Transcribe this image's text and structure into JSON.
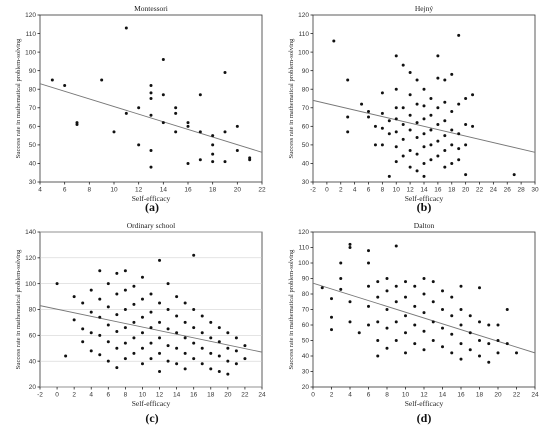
{
  "chart_data": [
    {
      "type": "scatter",
      "panel": "(a)",
      "title": "Montessori",
      "xlabel": "Self-efficacy",
      "ylabel": "Success rate in mathematical problem-solving",
      "xlim": [
        4,
        22
      ],
      "ylim": [
        30,
        120
      ],
      "xticks": [
        4,
        6,
        8,
        10,
        12,
        14,
        16,
        18,
        20,
        22
      ],
      "yticks": [
        30,
        40,
        50,
        60,
        70,
        80,
        90,
        100,
        110,
        120
      ],
      "grid": false,
      "trendline": {
        "x": [
          4,
          22
        ],
        "y": [
          83,
          46
        ]
      },
      "points": [
        [
          5,
          85
        ],
        [
          6,
          82
        ],
        [
          7,
          62
        ],
        [
          7,
          61
        ],
        [
          9,
          85
        ],
        [
          10,
          57
        ],
        [
          11,
          113
        ],
        [
          11,
          67
        ],
        [
          12,
          70
        ],
        [
          12,
          50
        ],
        [
          13,
          82
        ],
        [
          13,
          78
        ],
        [
          13,
          75
        ],
        [
          13,
          66
        ],
        [
          13,
          47
        ],
        [
          13,
          38
        ],
        [
          14,
          96
        ],
        [
          14,
          77
        ],
        [
          14,
          62
        ],
        [
          15,
          70
        ],
        [
          15,
          67
        ],
        [
          15,
          57
        ],
        [
          16,
          62
        ],
        [
          16,
          60
        ],
        [
          16,
          40
        ],
        [
          17,
          57
        ],
        [
          17,
          77
        ],
        [
          17,
          42
        ],
        [
          18,
          55
        ],
        [
          18,
          50
        ],
        [
          18,
          45
        ],
        [
          18,
          41
        ],
        [
          19,
          89
        ],
        [
          19,
          57
        ],
        [
          19,
          41
        ],
        [
          20,
          60
        ],
        [
          20,
          47
        ],
        [
          21,
          43
        ],
        [
          21,
          42
        ]
      ]
    },
    {
      "type": "scatter",
      "panel": "(b)",
      "title": "Hejný",
      "xlabel": "Self-efficacy",
      "ylabel": "Success rate in mathematical problem-solving",
      "xlim": [
        -2,
        30
      ],
      "ylim": [
        30,
        120
      ],
      "xticks": [
        -2,
        0,
        2,
        4,
        6,
        8,
        10,
        12,
        14,
        16,
        18,
        20,
        22,
        24,
        26,
        28,
        30
      ],
      "yticks": [
        30,
        40,
        50,
        60,
        70,
        80,
        90,
        100,
        110,
        120
      ],
      "grid": false,
      "trendline": {
        "x": [
          -2,
          30
        ],
        "y": [
          74,
          46
        ]
      },
      "points": [
        [
          1,
          106
        ],
        [
          3,
          85
        ],
        [
          3,
          65
        ],
        [
          3,
          57
        ],
        [
          5,
          72
        ],
        [
          6,
          68
        ],
        [
          6,
          65
        ],
        [
          7,
          60
        ],
        [
          7,
          50
        ],
        [
          8,
          78
        ],
        [
          8,
          67
        ],
        [
          8,
          59
        ],
        [
          8,
          50
        ],
        [
          9,
          63
        ],
        [
          9,
          56
        ],
        [
          9,
          33
        ],
        [
          10,
          98
        ],
        [
          10,
          80
        ],
        [
          10,
          70
        ],
        [
          10,
          64
        ],
        [
          10,
          57
        ],
        [
          10,
          49
        ],
        [
          10,
          41
        ],
        [
          11,
          93
        ],
        [
          11,
          70
        ],
        [
          11,
          61
        ],
        [
          11,
          53
        ],
        [
          11,
          44
        ],
        [
          12,
          89
        ],
        [
          12,
          77
        ],
        [
          12,
          66
        ],
        [
          12,
          58
        ],
        [
          12,
          47
        ],
        [
          12,
          38
        ],
        [
          13,
          85
        ],
        [
          13,
          72
        ],
        [
          13,
          62
        ],
        [
          13,
          54
        ],
        [
          13,
          45
        ],
        [
          13,
          36
        ],
        [
          14,
          80
        ],
        [
          14,
          71
        ],
        [
          14,
          64
        ],
        [
          14,
          56
        ],
        [
          14,
          49
        ],
        [
          14,
          40
        ],
        [
          14,
          33
        ],
        [
          15,
          75
        ],
        [
          15,
          66
        ],
        [
          15,
          58
        ],
        [
          15,
          50
        ],
        [
          15,
          42
        ],
        [
          16,
          98
        ],
        [
          16,
          86
        ],
        [
          16,
          70
        ],
        [
          16,
          61
        ],
        [
          16,
          52
        ],
        [
          16,
          44
        ],
        [
          17,
          85
        ],
        [
          17,
          73
        ],
        [
          17,
          63
        ],
        [
          17,
          55
        ],
        [
          17,
          47
        ],
        [
          17,
          38
        ],
        [
          18,
          88
        ],
        [
          18,
          68
        ],
        [
          18,
          58
        ],
        [
          18,
          50
        ],
        [
          18,
          40
        ],
        [
          19,
          109
        ],
        [
          19,
          72
        ],
        [
          19,
          56
        ],
        [
          19,
          48
        ],
        [
          19,
          42
        ],
        [
          20,
          75
        ],
        [
          20,
          61
        ],
        [
          20,
          50
        ],
        [
          20,
          34
        ],
        [
          21,
          77
        ],
        [
          21,
          60
        ],
        [
          27,
          34
        ]
      ]
    },
    {
      "type": "scatter",
      "panel": "(c)",
      "title": "Ordinary school",
      "xlabel": "Self-efficacy",
      "ylabel": "Success rate in mathematical problem-solving",
      "xlim": [
        -2,
        24
      ],
      "ylim": [
        20,
        140
      ],
      "xticks": [
        -2,
        0,
        2,
        4,
        6,
        8,
        10,
        12,
        14,
        16,
        18,
        20,
        22,
        24
      ],
      "yticks": [
        20,
        40,
        60,
        80,
        100,
        120,
        140
      ],
      "grid": true,
      "trendline": {
        "x": [
          -2,
          24
        ],
        "y": [
          83,
          47
        ]
      },
      "points": [
        [
          0,
          100
        ],
        [
          1,
          44
        ],
        [
          2,
          90
        ],
        [
          2,
          72
        ],
        [
          3,
          85
        ],
        [
          3,
          65
        ],
        [
          3,
          55
        ],
        [
          4,
          95
        ],
        [
          4,
          78
        ],
        [
          4,
          62
        ],
        [
          4,
          48
        ],
        [
          5,
          110
        ],
        [
          5,
          88
        ],
        [
          5,
          74
        ],
        [
          5,
          60
        ],
        [
          5,
          45
        ],
        [
          6,
          100
        ],
        [
          6,
          82
        ],
        [
          6,
          68
        ],
        [
          6,
          55
        ],
        [
          6,
          40
        ],
        [
          7,
          108
        ],
        [
          7,
          92
        ],
        [
          7,
          76
        ],
        [
          7,
          63
        ],
        [
          7,
          50
        ],
        [
          7,
          35
        ],
        [
          8,
          110
        ],
        [
          8,
          95
        ],
        [
          8,
          80
        ],
        [
          8,
          66
        ],
        [
          8,
          54
        ],
        [
          8,
          42
        ],
        [
          9,
          98
        ],
        [
          9,
          84
        ],
        [
          9,
          70
        ],
        [
          9,
          58
        ],
        [
          9,
          46
        ],
        [
          10,
          105
        ],
        [
          10,
          88
        ],
        [
          10,
          74
        ],
        [
          10,
          62
        ],
        [
          10,
          50
        ],
        [
          10,
          38
        ],
        [
          11,
          92
        ],
        [
          11,
          78
        ],
        [
          11,
          66
        ],
        [
          11,
          54
        ],
        [
          11,
          42
        ],
        [
          12,
          118
        ],
        [
          12,
          85
        ],
        [
          12,
          70
        ],
        [
          12,
          58
        ],
        [
          12,
          46
        ],
        [
          12,
          32
        ],
        [
          13,
          100
        ],
        [
          13,
          80
        ],
        [
          13,
          65
        ],
        [
          13,
          52
        ],
        [
          13,
          40
        ],
        [
          14,
          90
        ],
        [
          14,
          75
        ],
        [
          14,
          62
        ],
        [
          14,
          50
        ],
        [
          14,
          38
        ],
        [
          15,
          85
        ],
        [
          15,
          70
        ],
        [
          15,
          58
        ],
        [
          15,
          46
        ],
        [
          15,
          34
        ],
        [
          16,
          122
        ],
        [
          16,
          80
        ],
        [
          16,
          66
        ],
        [
          16,
          54
        ],
        [
          16,
          42
        ],
        [
          17,
          75
        ],
        [
          17,
          62
        ],
        [
          17,
          50
        ],
        [
          17,
          38
        ],
        [
          18,
          70
        ],
        [
          18,
          58
        ],
        [
          18,
          46
        ],
        [
          18,
          34
        ],
        [
          19,
          66
        ],
        [
          19,
          55
        ],
        [
          19,
          44
        ],
        [
          19,
          32
        ],
        [
          20,
          62
        ],
        [
          20,
          50
        ],
        [
          20,
          40
        ],
        [
          20,
          30
        ],
        [
          21,
          58
        ],
        [
          21,
          48
        ],
        [
          21,
          38
        ],
        [
          22,
          52
        ],
        [
          22,
          42
        ]
      ]
    },
    {
      "type": "scatter",
      "panel": "(d)",
      "title": "Dalton",
      "xlabel": "Self-efficacy",
      "ylabel": "Success rate in mathematical problem-solving",
      "xlim": [
        0,
        24
      ],
      "ylim": [
        20,
        120
      ],
      "xticks": [
        0,
        2,
        4,
        6,
        8,
        10,
        12,
        14,
        16,
        18,
        20,
        22,
        24
      ],
      "yticks": [
        20,
        30,
        40,
        50,
        60,
        70,
        80,
        90,
        100,
        110,
        120
      ],
      "grid": false,
      "trendline": {
        "x": [
          0,
          24
        ],
        "y": [
          87,
          42
        ]
      },
      "points": [
        [
          1,
          84
        ],
        [
          2,
          77
        ],
        [
          2,
          65
        ],
        [
          2,
          57
        ],
        [
          3,
          100
        ],
        [
          3,
          90
        ],
        [
          3,
          83
        ],
        [
          4,
          112
        ],
        [
          4,
          110
        ],
        [
          4,
          75
        ],
        [
          4,
          62
        ],
        [
          5,
          55
        ],
        [
          6,
          108
        ],
        [
          6,
          100
        ],
        [
          6,
          85
        ],
        [
          6,
          72
        ],
        [
          6,
          60
        ],
        [
          7,
          88
        ],
        [
          7,
          78
        ],
        [
          7,
          62
        ],
        [
          7,
          50
        ],
        [
          7,
          40
        ],
        [
          8,
          90
        ],
        [
          8,
          82
        ],
        [
          8,
          70
        ],
        [
          8,
          58
        ],
        [
          8,
          45
        ],
        [
          9,
          111
        ],
        [
          9,
          85
        ],
        [
          9,
          75
        ],
        [
          9,
          62
        ],
        [
          9,
          50
        ],
        [
          10,
          88
        ],
        [
          10,
          78
        ],
        [
          10,
          66
        ],
        [
          10,
          55
        ],
        [
          10,
          42
        ],
        [
          11,
          85
        ],
        [
          11,
          72
        ],
        [
          11,
          60
        ],
        [
          11,
          48
        ],
        [
          12,
          90
        ],
        [
          12,
          80
        ],
        [
          12,
          68
        ],
        [
          12,
          56
        ],
        [
          12,
          44
        ],
        [
          13,
          88
        ],
        [
          13,
          75
        ],
        [
          13,
          62
        ],
        [
          13,
          50
        ],
        [
          14,
          82
        ],
        [
          14,
          70
        ],
        [
          14,
          58
        ],
        [
          14,
          46
        ],
        [
          15,
          78
        ],
        [
          15,
          66
        ],
        [
          15,
          54
        ],
        [
          15,
          42
        ],
        [
          16,
          85
        ],
        [
          16,
          70
        ],
        [
          16,
          60
        ],
        [
          16,
          48
        ],
        [
          16,
          38
        ],
        [
          17,
          66
        ],
        [
          17,
          55
        ],
        [
          17,
          44
        ],
        [
          18,
          84
        ],
        [
          18,
          62
        ],
        [
          18,
          50
        ],
        [
          18,
          40
        ],
        [
          19,
          60
        ],
        [
          19,
          48
        ],
        [
          19,
          36
        ],
        [
          20,
          60
        ],
        [
          20,
          50
        ],
        [
          20,
          42
        ],
        [
          21,
          70
        ],
        [
          21,
          48
        ],
        [
          22,
          42
        ]
      ]
    }
  ]
}
